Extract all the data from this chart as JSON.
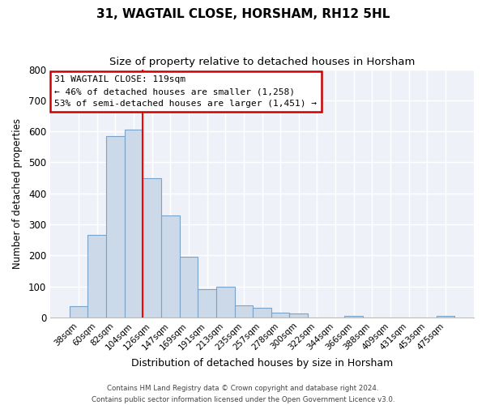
{
  "title": "31, WAGTAIL CLOSE, HORSHAM, RH12 5HL",
  "subtitle": "Size of property relative to detached houses in Horsham",
  "xlabel": "Distribution of detached houses by size in Horsham",
  "ylabel": "Number of detached properties",
  "bar_labels": [
    "38sqm",
    "60sqm",
    "82sqm",
    "104sqm",
    "126sqm",
    "147sqm",
    "169sqm",
    "191sqm",
    "213sqm",
    "235sqm",
    "257sqm",
    "278sqm",
    "300sqm",
    "322sqm",
    "344sqm",
    "366sqm",
    "388sqm",
    "409sqm",
    "431sqm",
    "453sqm",
    "475sqm"
  ],
  "bar_heights": [
    37,
    265,
    585,
    605,
    450,
    330,
    195,
    90,
    100,
    38,
    32,
    15,
    13,
    0,
    0,
    5,
    0,
    0,
    0,
    0,
    5
  ],
  "bar_color": "#ccd9e8",
  "bar_edge_color": "#7ba3c8",
  "red_line_index": 4,
  "red_line_label": "31 WAGTAIL CLOSE: 119sqm",
  "annotation_line1": "← 46% of detached houses are smaller (1,258)",
  "annotation_line2": "53% of semi-detached houses are larger (1,451) →",
  "annotation_box_color": "#ffffff",
  "annotation_box_edge": "#cc0000",
  "ylim": [
    0,
    800
  ],
  "yticks": [
    0,
    100,
    200,
    300,
    400,
    500,
    600,
    700,
    800
  ],
  "footer_line1": "Contains HM Land Registry data © Crown copyright and database right 2024.",
  "footer_line2": "Contains public sector information licensed under the Open Government Licence v3.0.",
  "bg_color": "#ffffff",
  "plot_bg_color": "#eef2f8",
  "grid_color": "#ffffff",
  "title_fontsize": 11,
  "subtitle_fontsize": 9.5
}
